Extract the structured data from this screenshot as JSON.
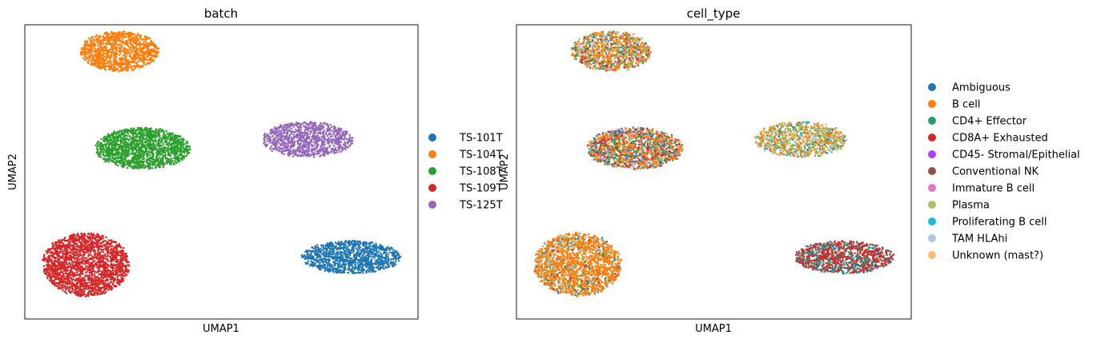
{
  "chart_data": [
    {
      "type": "scatter",
      "title": "batch",
      "xlabel": "UMAP1",
      "ylabel": "UMAP2",
      "xlim": [
        0,
        10
      ],
      "ylim": [
        0,
        10
      ],
      "grid": false,
      "legend_position": "right",
      "series": [
        {
          "name": "TS-101T",
          "color": "#1f77b4",
          "clusters": [
            {
              "cx": 8.3,
              "cy": 2.1,
              "rx": 1.25,
              "ry": 0.55,
              "n": 1100
            }
          ]
        },
        {
          "name": "TS-104T",
          "color": "#ff7f0e",
          "clusters": [
            {
              "cx": 2.4,
              "cy": 9.1,
              "rx": 1.0,
              "ry": 0.68,
              "n": 1100
            }
          ]
        },
        {
          "name": "TS-108T",
          "color": "#2ca02c",
          "clusters": [
            {
              "cx": 3.0,
              "cy": 5.8,
              "rx": 1.2,
              "ry": 0.7,
              "n": 1500
            }
          ]
        },
        {
          "name": "TS-109T",
          "color": "#d62728",
          "clusters": [
            {
              "cx": 1.55,
              "cy": 1.85,
              "rx": 1.1,
              "ry": 1.07,
              "n": 1900
            }
          ]
        },
        {
          "name": "TS-125T",
          "color": "#9467bd",
          "clusters": [
            {
              "cx": 7.2,
              "cy": 6.1,
              "rx": 1.15,
              "ry": 0.6,
              "n": 1000
            }
          ]
        }
      ]
    },
    {
      "type": "scatter",
      "title": "cell_type",
      "xlabel": "UMAP1",
      "ylabel": "UMAP2",
      "xlim": [
        0,
        10
      ],
      "ylim": [
        0,
        10
      ],
      "grid": false,
      "legend_position": "right",
      "clusters": [
        {
          "cx": 8.3,
          "cy": 2.1,
          "rx": 1.25,
          "ry": 0.55,
          "n": 1100,
          "mix": {
            "CD8A+ Exhausted": 0.55,
            "CD4+ Effector": 0.2,
            "Conventional NK": 0.1,
            "Ambiguous": 0.1,
            "Proliferating B cell": 0.05
          }
        },
        {
          "cx": 2.4,
          "cy": 9.1,
          "rx": 1.0,
          "ry": 0.68,
          "n": 1100,
          "mix": {
            "B cell": 0.45,
            "Plasma": 0.15,
            "CD4+ Effector": 0.12,
            "CD8A+ Exhausted": 0.1,
            "Ambiguous": 0.05,
            "TAM HLAhi": 0.05,
            "Proliferating B cell": 0.03,
            "Immature B cell": 0.03,
            "Unknown (mast?)": 0.02
          }
        },
        {
          "cx": 3.0,
          "cy": 5.8,
          "rx": 1.2,
          "ry": 0.7,
          "n": 1500,
          "mix": {
            "B cell": 0.35,
            "CD4+ Effector": 0.18,
            "CD8A+ Exhausted": 0.18,
            "Ambiguous": 0.1,
            "Immature B cell": 0.06,
            "Plasma": 0.05,
            "TAM HLAhi": 0.04,
            "Proliferating B cell": 0.02,
            "Conventional NK": 0.02
          }
        },
        {
          "cx": 1.55,
          "cy": 1.85,
          "rx": 1.1,
          "ry": 1.07,
          "n": 1900,
          "mix": {
            "B cell": 0.78,
            "Plasma": 0.06,
            "CD4+ Effector": 0.05,
            "TAM HLAhi": 0.04,
            "Ambiguous": 0.03,
            "CD8A+ Exhausted": 0.02,
            "Proliferating B cell": 0.02
          }
        },
        {
          "cx": 7.2,
          "cy": 6.1,
          "rx": 1.15,
          "ry": 0.6,
          "n": 1000,
          "mix": {
            "Plasma": 0.35,
            "B cell": 0.3,
            "TAM HLAhi": 0.1,
            "Proliferating B cell": 0.08,
            "CD4+ Effector": 0.08,
            "Unknown (mast?)": 0.05,
            "Ambiguous": 0.04
          }
        }
      ],
      "legend": [
        {
          "name": "Ambiguous",
          "color": "#1f77b4"
        },
        {
          "name": "B cell",
          "color": "#ff7f0e"
        },
        {
          "name": "CD4+ Effector",
          "color": "#279e68"
        },
        {
          "name": "CD8A+ Exhausted",
          "color": "#d62728"
        },
        {
          "name": "CD45- Stromal/Epithelial",
          "color": "#aa40fc"
        },
        {
          "name": "Conventional NK",
          "color": "#8c564b"
        },
        {
          "name": "Immature B cell",
          "color": "#e377c2"
        },
        {
          "name": "Plasma",
          "color": "#b5bd61"
        },
        {
          "name": "Proliferating B cell",
          "color": "#17becf"
        },
        {
          "name": "TAM HLAhi",
          "color": "#aec7e8"
        },
        {
          "name": "Unknown (mast?)",
          "color": "#ffbb78"
        }
      ]
    }
  ]
}
